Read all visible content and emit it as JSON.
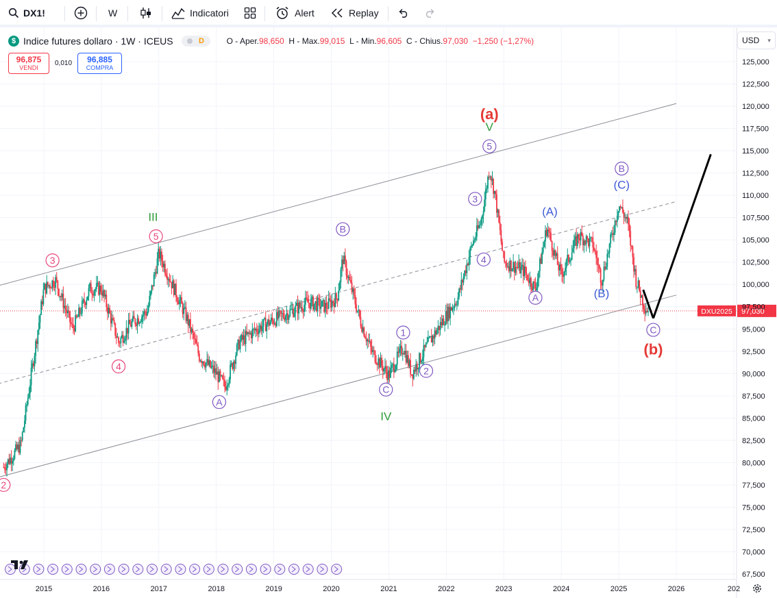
{
  "toolbar": {
    "symbol": "DX1!",
    "interval": "W",
    "indicators_label": "Indicatori",
    "alert_label": "Alert",
    "replay_label": "Replay",
    "icons": [
      "search-icon",
      "add-symbol-icon",
      "bar-style-icon",
      "indicators-icon",
      "templates-icon",
      "alert-icon",
      "replay-icon",
      "undo-icon",
      "redo-icon"
    ]
  },
  "legend": {
    "title": "Indice futures dollaro · 1W · ICEUS",
    "market_status": "D",
    "ohlc": {
      "open_label": "O - Aper.",
      "open": "98,650",
      "high_label": "H - Max.",
      "high": "99,015",
      "low_label": "L - Min.",
      "low": "96,605",
      "close_label": "C - Chius.",
      "close": "97,030",
      "change": "−1,250 (−1,27%)"
    }
  },
  "trade": {
    "sell_price": "96,875",
    "sell_label": "VENDI",
    "spread": "0,010",
    "buy_price": "96,885",
    "buy_label": "COMPRA"
  },
  "currency": "USD",
  "colors": {
    "up": "#089981",
    "down": "#f23645",
    "last_price": "#f23645",
    "wave_purple": "#7e57c2",
    "wave_blue": "#3e5bd6",
    "wave_green": "#2e9a3a",
    "wave_red": "#e53935",
    "wave_pink": "#e8447a"
  },
  "chart_data": {
    "type": "candlestick",
    "interval": "1W",
    "y_ticks": [
      "67,500",
      "70,000",
      "72,500",
      "75,000",
      "77,500",
      "80,000",
      "82,500",
      "85,000",
      "87,500",
      "90,000",
      "92,500",
      "95,000",
      "97,500",
      "100,000",
      "102,500",
      "105,000",
      "107,500",
      "110,000",
      "112,500",
      "115,000",
      "117,500",
      "120,000",
      "122,500",
      "125,000"
    ],
    "x_ticks": [
      "2015",
      "2016",
      "2017",
      "2018",
      "2019",
      "2020",
      "2021",
      "2022",
      "2023",
      "2024",
      "2025",
      "2026",
      "202"
    ],
    "ylim": [
      66.5,
      127.5
    ],
    "last_price": 97.03,
    "last_price_label": "97,030",
    "last_price_tag": "DXU2025",
    "price_path": [
      [
        2014.3,
        79.5
      ],
      [
        2014.6,
        82
      ],
      [
        2015.0,
        99.5
      ],
      [
        2015.2,
        100.5
      ],
      [
        2015.5,
        95
      ],
      [
        2015.8,
        99.5
      ],
      [
        2016.0,
        99.5
      ],
      [
        2016.3,
        93.5
      ],
      [
        2016.5,
        95.5
      ],
      [
        2016.8,
        97
      ],
      [
        2017.0,
        103.5
      ],
      [
        2017.2,
        100.5
      ],
      [
        2017.5,
        96
      ],
      [
        2017.7,
        92
      ],
      [
        2018.0,
        90
      ],
      [
        2018.15,
        88.5
      ],
      [
        2018.4,
        93.5
      ],
      [
        2018.7,
        95
      ],
      [
        2019.0,
        96
      ],
      [
        2019.3,
        97
      ],
      [
        2019.6,
        98
      ],
      [
        2019.9,
        97.5
      ],
      [
        2020.1,
        98.5
      ],
      [
        2020.2,
        103
      ],
      [
        2020.35,
        99.5
      ],
      [
        2020.5,
        96
      ],
      [
        2020.7,
        92.5
      ],
      [
        2021.0,
        89.8
      ],
      [
        2021.25,
        93
      ],
      [
        2021.4,
        90
      ],
      [
        2021.7,
        93.5
      ],
      [
        2021.95,
        96
      ],
      [
        2022.2,
        98.5
      ],
      [
        2022.45,
        104.5
      ],
      [
        2022.6,
        107
      ],
      [
        2022.75,
        113
      ],
      [
        2022.85,
        110
      ],
      [
        2023.0,
        102.5
      ],
      [
        2023.2,
        102
      ],
      [
        2023.35,
        101.5
      ],
      [
        2023.55,
        99.5
      ],
      [
        2023.75,
        106.5
      ],
      [
        2023.9,
        103
      ],
      [
        2024.0,
        101
      ],
      [
        2024.3,
        105.5
      ],
      [
        2024.55,
        104.5
      ],
      [
        2024.7,
        100.5
      ],
      [
        2024.9,
        106
      ],
      [
        2025.0,
        109
      ],
      [
        2025.15,
        107
      ],
      [
        2025.3,
        100.5
      ],
      [
        2025.45,
        97.5
      ],
      [
        2025.52,
        97.03
      ]
    ],
    "channel_lines": [
      {
        "style": "solid",
        "from": [
          2014.0,
          78.0
        ],
        "to": [
          2026.0,
          98.8
        ]
      },
      {
        "style": "dashed",
        "from": [
          2014.0,
          88.5
        ],
        "to": [
          2026.0,
          109.3
        ]
      },
      {
        "style": "solid",
        "from": [
          2014.0,
          99.5
        ],
        "to": [
          2026.0,
          120.3
        ]
      }
    ],
    "projection": {
      "from": [
        2025.6,
        96.2
      ],
      "to": [
        2026.6,
        114.6
      ]
    },
    "annotations": [
      {
        "text": "2",
        "kind": "circle",
        "color": "pink",
        "x": 2014.3,
        "y": 77.5
      },
      {
        "text": "3",
        "kind": "circle",
        "color": "pink",
        "x": 2015.15,
        "y": 102.7
      },
      {
        "text": "4",
        "kind": "circle",
        "color": "pink",
        "x": 2016.3,
        "y": 90.8
      },
      {
        "text": "5",
        "kind": "circle",
        "color": "pink",
        "x": 2016.95,
        "y": 105.4
      },
      {
        "text": "III",
        "kind": "label",
        "color": "green",
        "x": 2016.9,
        "y": 107.6
      },
      {
        "text": "A",
        "kind": "circle",
        "color": "purple",
        "x": 2018.05,
        "y": 86.8
      },
      {
        "text": "B",
        "kind": "circle",
        "color": "purple",
        "x": 2020.2,
        "y": 106.2
      },
      {
        "text": "C",
        "kind": "circle",
        "color": "purple",
        "x": 2020.95,
        "y": 88.2
      },
      {
        "text": "IV",
        "kind": "label",
        "color": "green",
        "x": 2020.95,
        "y": 85.2
      },
      {
        "text": "1",
        "kind": "circle",
        "color": "purple",
        "x": 2021.25,
        "y": 94.6
      },
      {
        "text": "2",
        "kind": "circle",
        "color": "purple",
        "x": 2021.65,
        "y": 90.3
      },
      {
        "text": "3",
        "kind": "circle",
        "color": "purple",
        "x": 2022.5,
        "y": 109.6
      },
      {
        "text": "4",
        "kind": "circle",
        "color": "purple",
        "x": 2022.65,
        "y": 102.8
      },
      {
        "text": "5",
        "kind": "circle",
        "color": "purple",
        "x": 2022.75,
        "y": 115.5
      },
      {
        "text": "V",
        "kind": "label",
        "color": "green",
        "x": 2022.75,
        "y": 117.7
      },
      {
        "text": "(a)",
        "kind": "label",
        "color": "red",
        "x": 2022.75,
        "y": 119.0
      },
      {
        "text": "(A)",
        "kind": "label",
        "color": "blue",
        "x": 2023.8,
        "y": 108.2
      },
      {
        "text": "A",
        "kind": "circle",
        "color": "purple",
        "x": 2023.55,
        "y": 98.5
      },
      {
        "text": "(B)",
        "kind": "label",
        "color": "blue",
        "x": 2024.7,
        "y": 99.0
      },
      {
        "text": "B",
        "kind": "circle",
        "color": "purple",
        "x": 2025.05,
        "y": 113.0
      },
      {
        "text": "(C)",
        "kind": "label",
        "color": "blue",
        "x": 2025.05,
        "y": 111.2
      },
      {
        "text": "C",
        "kind": "circle",
        "color": "purple",
        "x": 2025.6,
        "y": 94.9
      },
      {
        "text": "(b)",
        "kind": "label",
        "color": "red",
        "x": 2025.6,
        "y": 92.6
      }
    ]
  }
}
